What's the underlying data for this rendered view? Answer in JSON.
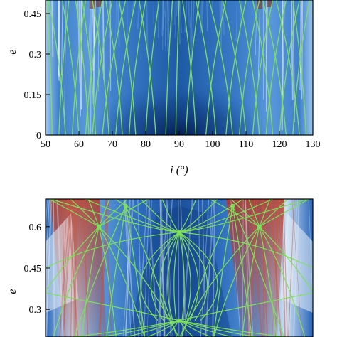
{
  "chart_data": [
    {
      "type": "heatmap",
      "xlabel": "i (°)",
      "ylabel": "e",
      "xlim": [
        50,
        130
      ],
      "ylim": [
        0,
        0.5
      ],
      "xticks": [
        50,
        60,
        70,
        80,
        90,
        100,
        110,
        120,
        130
      ],
      "yticks": [
        0,
        0.15,
        0.3,
        0.45
      ],
      "ytick_labels": [
        "0",
        "0.15",
        "0.3",
        "0.45"
      ],
      "grid": false,
      "colormap": [
        "#0b2a6e",
        "#2f6fc0",
        "#7fb3e6",
        "#ffffff",
        "#b33a2a"
      ],
      "overlay_line_color": "#7ee05a",
      "overlay_curves": [
        {
          "x_at_bottom": 52,
          "x_at_top": 50.5
        },
        {
          "x_at_bottom": 54,
          "x_at_top": 57
        },
        {
          "x_at_bottom": 56,
          "x_at_top": 51
        },
        {
          "x_at_bottom": 58,
          "x_at_top": 62
        },
        {
          "x_at_bottom": 60,
          "x_at_top": 55
        },
        {
          "x_at_bottom": 62,
          "x_at_top": 67
        },
        {
          "x_at_bottom": 63,
          "x_at_top": 59
        },
        {
          "x_at_bottom": 64,
          "x_at_top": 70
        },
        {
          "x_at_bottom": 65,
          "x_at_top": 61
        },
        {
          "x_at_bottom": 67,
          "x_at_top": 74
        },
        {
          "x_at_bottom": 69,
          "x_at_top": 64
        },
        {
          "x_at_bottom": 71,
          "x_at_top": 77
        },
        {
          "x_at_bottom": 73,
          "x_at_top": 68
        },
        {
          "x_at_bottom": 75,
          "x_at_top": 80
        },
        {
          "x_at_bottom": 77,
          "x_at_top": 72
        },
        {
          "x_at_bottom": 80,
          "x_at_top": 84
        },
        {
          "x_at_bottom": 83,
          "x_at_top": 78
        },
        {
          "x_at_bottom": 86,
          "x_at_top": 88
        },
        {
          "x_at_bottom": 89,
          "x_at_top": 90
        },
        {
          "x_at_bottom": 92,
          "x_at_top": 96
        },
        {
          "x_at_bottom": 95,
          "x_at_top": 91
        },
        {
          "x_at_bottom": 98,
          "x_at_top": 104
        },
        {
          "x_at_bottom": 101,
          "x_at_top": 95
        },
        {
          "x_at_bottom": 104,
          "x_at_top": 110
        },
        {
          "x_at_bottom": 106,
          "x_at_top": 99
        },
        {
          "x_at_bottom": 108,
          "x_at_top": 114
        },
        {
          "x_at_bottom": 110,
          "x_at_top": 103
        },
        {
          "x_at_bottom": 112,
          "x_at_top": 118
        },
        {
          "x_at_bottom": 114,
          "x_at_top": 108
        },
        {
          "x_at_bottom": 116,
          "x_at_top": 122
        },
        {
          "x_at_bottom": 118,
          "x_at_top": 112
        },
        {
          "x_at_bottom": 120,
          "x_at_top": 126
        },
        {
          "x_at_bottom": 122,
          "x_at_top": 115
        },
        {
          "x_at_bottom": 124,
          "x_at_top": 129
        },
        {
          "x_at_bottom": 126,
          "x_at_top": 119
        },
        {
          "x_at_bottom": 128,
          "x_at_top": 124
        }
      ]
    },
    {
      "type": "heatmap",
      "xlabel": "",
      "ylabel": "e",
      "xlim": [
        50,
        130
      ],
      "ylim": [
        0.2,
        0.7
      ],
      "yticks": [
        0.3,
        0.45,
        0.6
      ],
      "ytick_labels": [
        "0.3",
        "0.45",
        "0.6"
      ],
      "grid": false,
      "overlay_line_color": "#7ee05a",
      "resonance_nodes": [
        {
          "x": 90,
          "y": 0.58
        },
        {
          "x": 90,
          "y": 0.26
        },
        {
          "x": 66,
          "y": 0.6
        },
        {
          "x": 114,
          "y": 0.6
        },
        {
          "x": 74,
          "y": 0.675
        },
        {
          "x": 106,
          "y": 0.675
        }
      ]
    }
  ]
}
